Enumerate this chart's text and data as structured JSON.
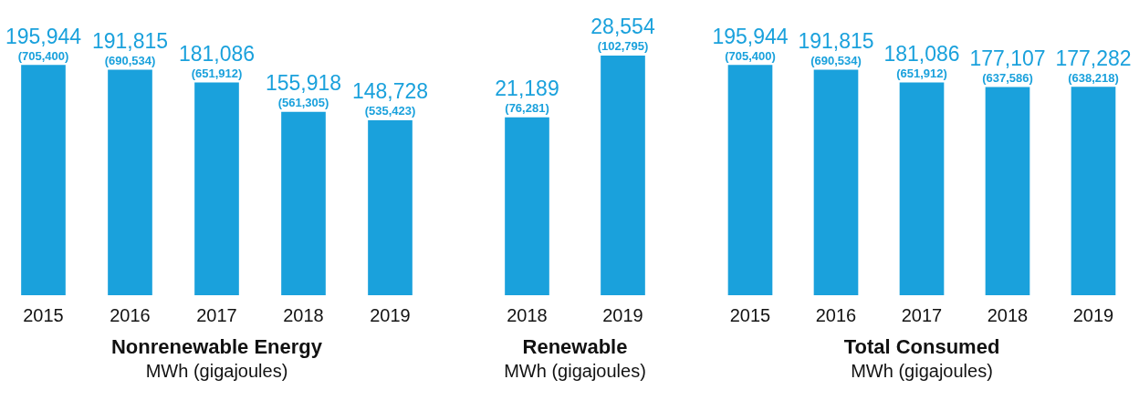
{
  "chart_data": [
    {
      "type": "bar",
      "title": "Nonrenewable Energy",
      "subtitle": "MWh (gigajoules)",
      "categories": [
        "2015",
        "2016",
        "2017",
        "2018",
        "2019"
      ],
      "values": [
        195944,
        191815,
        181086,
        155918,
        148728
      ],
      "value_labels": [
        "195,944 (705,400)",
        "191,815 (690,534)",
        "181,086 (651,912)",
        "155,918 (561,305)",
        "148,728 (535,423)"
      ],
      "color": "#1aa1dc",
      "legend": false,
      "grid": false
    },
    {
      "type": "bar",
      "title": "Renewable",
      "subtitle": "MWh (gigajoules)",
      "categories": [
        "2018",
        "2019"
      ],
      "values": [
        21189,
        28554
      ],
      "value_labels": [
        "21,189 (76,281)",
        "28,554 (102,795)"
      ],
      "color": "#1aa1dc",
      "legend": false,
      "grid": false
    },
    {
      "type": "bar",
      "title": "Total Consumed",
      "subtitle": "MWh (gigajoules)",
      "categories": [
        "2015",
        "2016",
        "2017",
        "2018",
        "2019"
      ],
      "values": [
        195944,
        191815,
        181086,
        177107,
        177282
      ],
      "value_labels": [
        "195,944 (705,400)",
        "191,815 (690,534)",
        "181,086 (651,912)",
        "177,107 (637,586)",
        "177,282 (638,218)"
      ],
      "color": "#1aa1dc",
      "legend": false,
      "grid": false
    }
  ]
}
